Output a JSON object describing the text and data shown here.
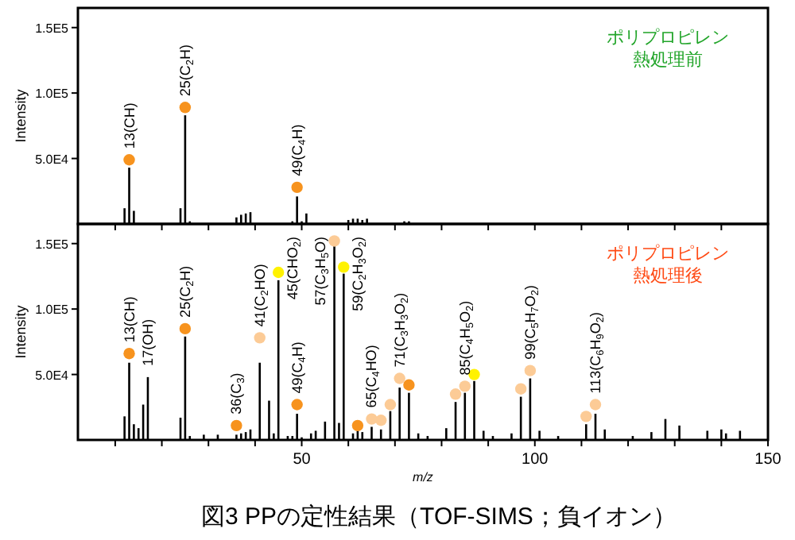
{
  "chart_data": [
    {
      "type": "bar",
      "title": "ポリプロピレン",
      "subtitle": "熱処理前",
      "ylabel": "Intensity",
      "xlim": [
        2,
        150
      ],
      "ylim": [
        0,
        165000
      ],
      "xticks": [
        {
          "value": 10,
          "label": null
        },
        {
          "value": 20,
          "label": null
        },
        {
          "value": 30,
          "label": null
        },
        {
          "value": 40,
          "label": null
        },
        50,
        {
          "value": 60,
          "label": null
        },
        {
          "value": 70,
          "label": null
        },
        {
          "value": 80,
          "label": null
        },
        {
          "value": 90,
          "label": null
        },
        100,
        {
          "value": 110,
          "label": null
        },
        {
          "value": 120,
          "label": null
        },
        {
          "value": 130,
          "label": null
        },
        {
          "value": 140,
          "label": null
        },
        150
      ],
      "yticks": [
        {
          "value": 50000,
          "label": "5.0E4"
        },
        {
          "value": 100000,
          "label": "1.0E5"
        },
        {
          "value": 150000,
          "label": "1.5E5"
        }
      ],
      "tick_labels": "y",
      "series": [
        {
          "color": "#000000",
          "x": [
            12,
            13,
            14,
            24,
            25,
            26,
            36,
            37,
            38,
            39,
            48,
            49,
            50,
            51,
            60,
            61,
            62,
            63,
            64,
            72,
            73
          ],
          "values": [
            12000,
            43000,
            10000,
            12000,
            83000,
            2000,
            5000,
            7000,
            8000,
            9000,
            2000,
            21000,
            2000,
            8000,
            3000,
            4000,
            4000,
            3000,
            4000,
            2000,
            2000
          ]
        },
        {
          "type": "scatter",
          "marker": "circle",
          "x": [
            13,
            25,
            49
          ],
          "values": [
            49000,
            89000,
            28000
          ],
          "colors": [
            "#f7931e",
            "#f7931e",
            "#f7931e"
          ]
        }
      ],
      "annotations": [
        {
          "text": "13(CH)",
          "x": 13,
          "y": 43000
        },
        {
          "text": "25(C$_{2}$H)",
          "x": 25,
          "y": 83000
        },
        {
          "text": "49(C$_{4}$H)",
          "x": 49,
          "y": 21000
        }
      ]
    },
    {
      "type": "bar",
      "title": "ポリプロピレン",
      "subtitle": "熱処理後",
      "ylabel": "Intensity",
      "xlabel": "*m/z*",
      "xlim": [
        2,
        150
      ],
      "ylim": [
        0,
        165000
      ],
      "xticks": [
        {
          "value": 10,
          "label": null
        },
        {
          "value": 20,
          "label": null
        },
        {
          "value": 30,
          "label": null
        },
        {
          "value": 40,
          "label": null
        },
        50,
        {
          "value": 60,
          "label": null
        },
        {
          "value": 70,
          "label": null
        },
        {
          "value": 80,
          "label": null
        },
        {
          "value": 90,
          "label": null
        },
        100,
        {
          "value": 110,
          "label": null
        },
        {
          "value": 120,
          "label": null
        },
        {
          "value": 130,
          "label": null
        },
        {
          "value": 140,
          "label": null
        },
        150
      ],
      "yticks": [
        {
          "value": 50000,
          "label": "5.0E4"
        },
        {
          "value": 100000,
          "label": "1.0E5"
        },
        {
          "value": 150000,
          "label": "1.5E5"
        }
      ],
      "series": [
        {
          "color": "#000000",
          "x": [
            12,
            13,
            14,
            15,
            16,
            17,
            24,
            25,
            26,
            29,
            32,
            36,
            37,
            38,
            39,
            41,
            43,
            44,
            45,
            47,
            48,
            49,
            50,
            52,
            53,
            55,
            57,
            58,
            59,
            61,
            62,
            63,
            65,
            67,
            69,
            71,
            73,
            75,
            77,
            81,
            83,
            85,
            87,
            89,
            91,
            95,
            97,
            99,
            101,
            105,
            111,
            113,
            115,
            121,
            125,
            128,
            131,
            137,
            140,
            141,
            144
          ],
          "values": [
            18000,
            59000,
            12000,
            9000,
            27000,
            48000,
            17000,
            79000,
            3000,
            4000,
            4000,
            4000,
            5000,
            6000,
            8000,
            59000,
            30000,
            5000,
            122000,
            3000,
            3000,
            20000,
            2000,
            5000,
            7000,
            14000,
            148000,
            13000,
            127000,
            5000,
            7000,
            6000,
            10000,
            8000,
            22000,
            40000,
            36000,
            5000,
            3000,
            9000,
            29000,
            36000,
            45000,
            7000,
            3000,
            5000,
            33000,
            47000,
            7000,
            3000,
            12000,
            20000,
            8000,
            3000,
            6000,
            16000,
            11000,
            7000,
            8000,
            5000,
            7000
          ]
        },
        {
          "type": "scatter",
          "marker": "circle",
          "x": [
            13,
            25,
            36,
            41,
            45,
            49,
            57,
            59,
            62,
            65,
            67,
            69,
            71,
            73,
            83,
            85,
            87,
            97,
            99,
            111,
            113
          ],
          "values": [
            66000,
            85000,
            11000,
            78000,
            128000,
            27000,
            152000,
            132000,
            11000,
            16000,
            15000,
            27000,
            47000,
            42000,
            35000,
            41000,
            50000,
            39000,
            53000,
            18000,
            27000
          ],
          "colors": [
            "#f7931e",
            "#f7931e",
            "#f7931e",
            "#fccb96",
            "#fff200",
            "#f7931e",
            "#fccb96",
            "#fff200",
            "#f7931e",
            "#fccb96",
            "#fccb96",
            "#fccb96",
            "#fccb96",
            "#f7931e",
            "#fccb96",
            "#fccb96",
            "#fff200",
            "#fccb96",
            "#fccb96",
            "#fccb96",
            "#fccb96"
          ]
        }
      ],
      "annotations": [
        {
          "text": "13(CH)",
          "x": 13,
          "y": 59000
        },
        {
          "text": "17(OH)",
          "x": 17,
          "y": 48000
        },
        {
          "text": "25(C$_{2}$H)",
          "x": 25,
          "y": 79000
        },
        {
          "text": "36(C$_{3}$)",
          "x": 36,
          "y": 4000
        },
        {
          "text": "41(C$_{2}$HO)",
          "x": 41,
          "y": 59000
        },
        {
          "text": "45(CHO$_{2}$)",
          "x": 45,
          "y": 122000
        },
        {
          "text": "49(C$_{4}$H)",
          "x": 49,
          "y": 20000
        },
        {
          "text": "57(C$_{3}$H$_{5}$O)",
          "x": 57,
          "y": 148000
        },
        {
          "text": "59(C$_{2}$H$_{3}$O$_{2}$)",
          "x": 59,
          "y": 127000
        },
        {
          "text": "65(C$_{4}$HO)",
          "x": 65,
          "y": 10000
        },
        {
          "text": "71(C$_{3}$H$_{3}$O$_{2}$)",
          "x": 71,
          "y": 40000
        },
        {
          "text": "85(C$_{4}$H$_{5}$O$_{2}$)",
          "x": 85,
          "y": 36000
        },
        {
          "text": "99(C$_{5}$H$_{7}$O$_{2}$)",
          "x": 99,
          "y": 47000
        },
        {
          "text": "113(C$_{6}$H$_{9}$O$_{2}$)",
          "x": 113,
          "y": 20000
        },
        "図3 PPの定性結果（TOF-SIMS；負イオン）"
      ]
    }
  ]
}
